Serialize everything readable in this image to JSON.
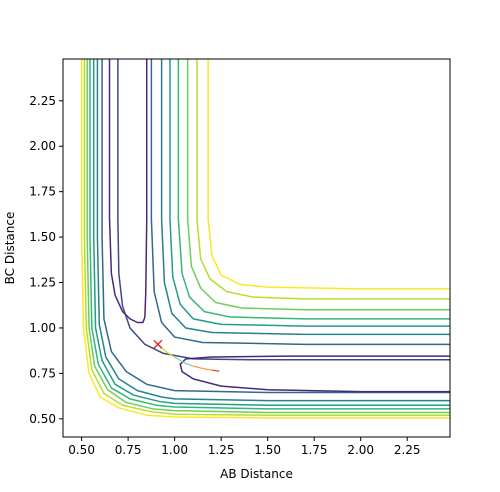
{
  "chart_data": {
    "type": "contour",
    "title": "",
    "xlabel": "AB Distance",
    "ylabel": "BC Distance",
    "xlim": [
      0.4,
      2.48
    ],
    "ylim": [
      0.4,
      2.48
    ],
    "x_ticks": [
      "0.50",
      "0.75",
      "1.00",
      "1.25",
      "1.50",
      "1.75",
      "2.00",
      "2.25"
    ],
    "y_ticks": [
      "0.50",
      "0.75",
      "1.00",
      "1.25",
      "1.50",
      "1.75",
      "2.00",
      "2.25"
    ],
    "contours": [
      {
        "color": "#fde725",
        "points": [
          [
            0.5,
            2.48
          ],
          [
            0.5,
            1.5
          ],
          [
            0.51,
            1.0
          ],
          [
            0.54,
            0.75
          ],
          [
            0.6,
            0.62
          ],
          [
            0.7,
            0.56
          ],
          [
            0.85,
            0.52
          ],
          [
            1.0,
            0.51
          ],
          [
            1.5,
            0.505
          ],
          [
            2.48,
            0.505
          ]
        ]
      },
      {
        "color": "#b5de2b",
        "points": [
          [
            0.515,
            2.48
          ],
          [
            0.515,
            1.5
          ],
          [
            0.525,
            1.0
          ],
          [
            0.555,
            0.77
          ],
          [
            0.62,
            0.64
          ],
          [
            0.72,
            0.575
          ],
          [
            0.87,
            0.54
          ],
          [
            1.0,
            0.525
          ],
          [
            1.5,
            0.52
          ],
          [
            2.48,
            0.52
          ]
        ]
      },
      {
        "color": "#6ece58",
        "points": [
          [
            0.53,
            2.48
          ],
          [
            0.53,
            1.5
          ],
          [
            0.54,
            1.0
          ],
          [
            0.57,
            0.79
          ],
          [
            0.64,
            0.66
          ],
          [
            0.74,
            0.59
          ],
          [
            0.88,
            0.555
          ],
          [
            1.0,
            0.545
          ],
          [
            1.5,
            0.535
          ],
          [
            2.48,
            0.535
          ]
        ]
      },
      {
        "color": "#35b779",
        "points": [
          [
            0.545,
            2.48
          ],
          [
            0.545,
            1.5
          ],
          [
            0.555,
            1.0
          ],
          [
            0.59,
            0.8
          ],
          [
            0.66,
            0.67
          ],
          [
            0.76,
            0.61
          ],
          [
            0.9,
            0.575
          ],
          [
            1.0,
            0.565
          ],
          [
            1.5,
            0.555
          ],
          [
            2.48,
            0.555
          ]
        ]
      },
      {
        "color": "#1f9e89",
        "points": [
          [
            0.565,
            2.48
          ],
          [
            0.565,
            1.5
          ],
          [
            0.575,
            1.0
          ],
          [
            0.61,
            0.82
          ],
          [
            0.68,
            0.69
          ],
          [
            0.78,
            0.63
          ],
          [
            0.92,
            0.595
          ],
          [
            1.0,
            0.585
          ],
          [
            1.5,
            0.575
          ],
          [
            2.48,
            0.575
          ]
        ]
      },
      {
        "color": "#26828e",
        "points": [
          [
            0.585,
            2.48
          ],
          [
            0.585,
            1.5
          ],
          [
            0.595,
            1.02
          ],
          [
            0.63,
            0.84
          ],
          [
            0.7,
            0.72
          ],
          [
            0.8,
            0.655
          ],
          [
            0.93,
            0.62
          ],
          [
            1.0,
            0.61
          ],
          [
            1.5,
            0.6
          ],
          [
            2.48,
            0.6
          ]
        ]
      },
      {
        "color": "#31688e",
        "points": [
          [
            0.61,
            2.48
          ],
          [
            0.61,
            1.5
          ],
          [
            0.62,
            1.05
          ],
          [
            0.66,
            0.87
          ],
          [
            0.74,
            0.76
          ],
          [
            0.85,
            0.69
          ],
          [
            1.0,
            0.655
          ],
          [
            1.5,
            0.645
          ],
          [
            2.48,
            0.645
          ]
        ]
      },
      {
        "color": "#3e4989",
        "points": [
          [
            0.695,
            2.48
          ],
          [
            0.695,
            1.6
          ],
          [
            0.7,
            1.3
          ],
          [
            0.72,
            1.12
          ],
          [
            0.76,
            1.0
          ],
          [
            0.84,
            0.91
          ],
          [
            0.94,
            0.86
          ],
          [
            1.1,
            0.83
          ],
          [
            1.4,
            0.825
          ],
          [
            2.48,
            0.825
          ]
        ]
      },
      {
        "color": "#482878",
        "points": [
          [
            0.65,
            2.48
          ],
          [
            0.65,
            1.6
          ],
          [
            0.66,
            1.3
          ],
          [
            0.68,
            1.18
          ],
          [
            0.72,
            1.09
          ],
          [
            0.76,
            1.05
          ],
          [
            0.8,
            1.03
          ],
          [
            0.83,
            1.03
          ],
          [
            0.84,
            1.06
          ],
          [
            0.845,
            1.2
          ],
          [
            0.85,
            1.6
          ],
          [
            0.85,
            2.48
          ]
        ]
      },
      {
        "color": "#482878",
        "points": [
          [
            2.48,
            0.65
          ],
          [
            2.0,
            0.65
          ],
          [
            1.5,
            0.66
          ],
          [
            1.25,
            0.68
          ],
          [
            1.1,
            0.72
          ],
          [
            1.04,
            0.76
          ],
          [
            1.03,
            0.8
          ],
          [
            1.06,
            0.83
          ],
          [
            1.2,
            0.84
          ],
          [
            1.6,
            0.845
          ],
          [
            2.48,
            0.845
          ]
        ]
      },
      {
        "color": "#fde725",
        "points": [
          [
            1.18,
            2.48
          ],
          [
            1.18,
            1.6
          ],
          [
            1.2,
            1.4
          ],
          [
            1.25,
            1.29
          ],
          [
            1.35,
            1.24
          ],
          [
            1.5,
            1.225
          ],
          [
            2.0,
            1.215
          ],
          [
            2.48,
            1.215
          ]
        ]
      },
      {
        "color": "#b5de2b",
        "points": [
          [
            1.12,
            2.48
          ],
          [
            1.12,
            1.6
          ],
          [
            1.14,
            1.38
          ],
          [
            1.19,
            1.27
          ],
          [
            1.28,
            1.2
          ],
          [
            1.42,
            1.17
          ],
          [
            1.7,
            1.16
          ],
          [
            2.48,
            1.16
          ]
        ]
      },
      {
        "color": "#6ece58",
        "points": [
          [
            1.07,
            2.48
          ],
          [
            1.07,
            1.6
          ],
          [
            1.09,
            1.34
          ],
          [
            1.14,
            1.22
          ],
          [
            1.22,
            1.14
          ],
          [
            1.36,
            1.11
          ],
          [
            1.7,
            1.1
          ],
          [
            2.48,
            1.1
          ]
        ]
      },
      {
        "color": "#35b779",
        "points": [
          [
            1.02,
            2.48
          ],
          [
            1.02,
            1.6
          ],
          [
            1.04,
            1.3
          ],
          [
            1.08,
            1.17
          ],
          [
            1.16,
            1.09
          ],
          [
            1.3,
            1.06
          ],
          [
            1.7,
            1.05
          ],
          [
            2.48,
            1.05
          ]
        ]
      },
      {
        "color": "#1f9e89",
        "points": [
          [
            0.975,
            2.48
          ],
          [
            0.975,
            1.6
          ],
          [
            0.99,
            1.28
          ],
          [
            1.03,
            1.13
          ],
          [
            1.1,
            1.05
          ],
          [
            1.25,
            1.02
          ],
          [
            1.7,
            1.01
          ],
          [
            2.48,
            1.01
          ]
        ]
      },
      {
        "color": "#26828e",
        "points": [
          [
            0.93,
            2.48
          ],
          [
            0.93,
            1.6
          ],
          [
            0.945,
            1.25
          ],
          [
            0.985,
            1.08
          ],
          [
            1.06,
            1.0
          ],
          [
            1.2,
            0.975
          ],
          [
            1.7,
            0.965
          ],
          [
            2.48,
            0.965
          ]
        ]
      },
      {
        "color": "#31688e",
        "points": [
          [
            0.875,
            2.48
          ],
          [
            0.875,
            1.6
          ],
          [
            0.89,
            1.2
          ],
          [
            0.93,
            1.03
          ],
          [
            1.0,
            0.95
          ],
          [
            1.15,
            0.92
          ],
          [
            1.7,
            0.91
          ],
          [
            2.48,
            0.91
          ]
        ]
      }
    ],
    "trajectory": [
      {
        "color": "#c8e020",
        "points": [
          [
            0.91,
            0.91
          ],
          [
            0.96,
            0.865
          ],
          [
            1.0,
            0.84
          ]
        ]
      },
      {
        "color": "#7fd3c0",
        "points": [
          [
            1.0,
            0.84
          ],
          [
            1.06,
            0.805
          ],
          [
            1.1,
            0.79
          ]
        ]
      },
      {
        "color": "#f4a040",
        "points": [
          [
            1.1,
            0.79
          ],
          [
            1.16,
            0.775
          ],
          [
            1.2,
            0.768
          ]
        ]
      },
      {
        "color": "#e8473a",
        "points": [
          [
            1.2,
            0.768
          ],
          [
            1.24,
            0.762
          ]
        ]
      }
    ],
    "marker": {
      "x": 0.91,
      "y": 0.91,
      "symbol": "x",
      "color": "#e31a1c"
    },
    "grid": false,
    "legend": "none"
  }
}
